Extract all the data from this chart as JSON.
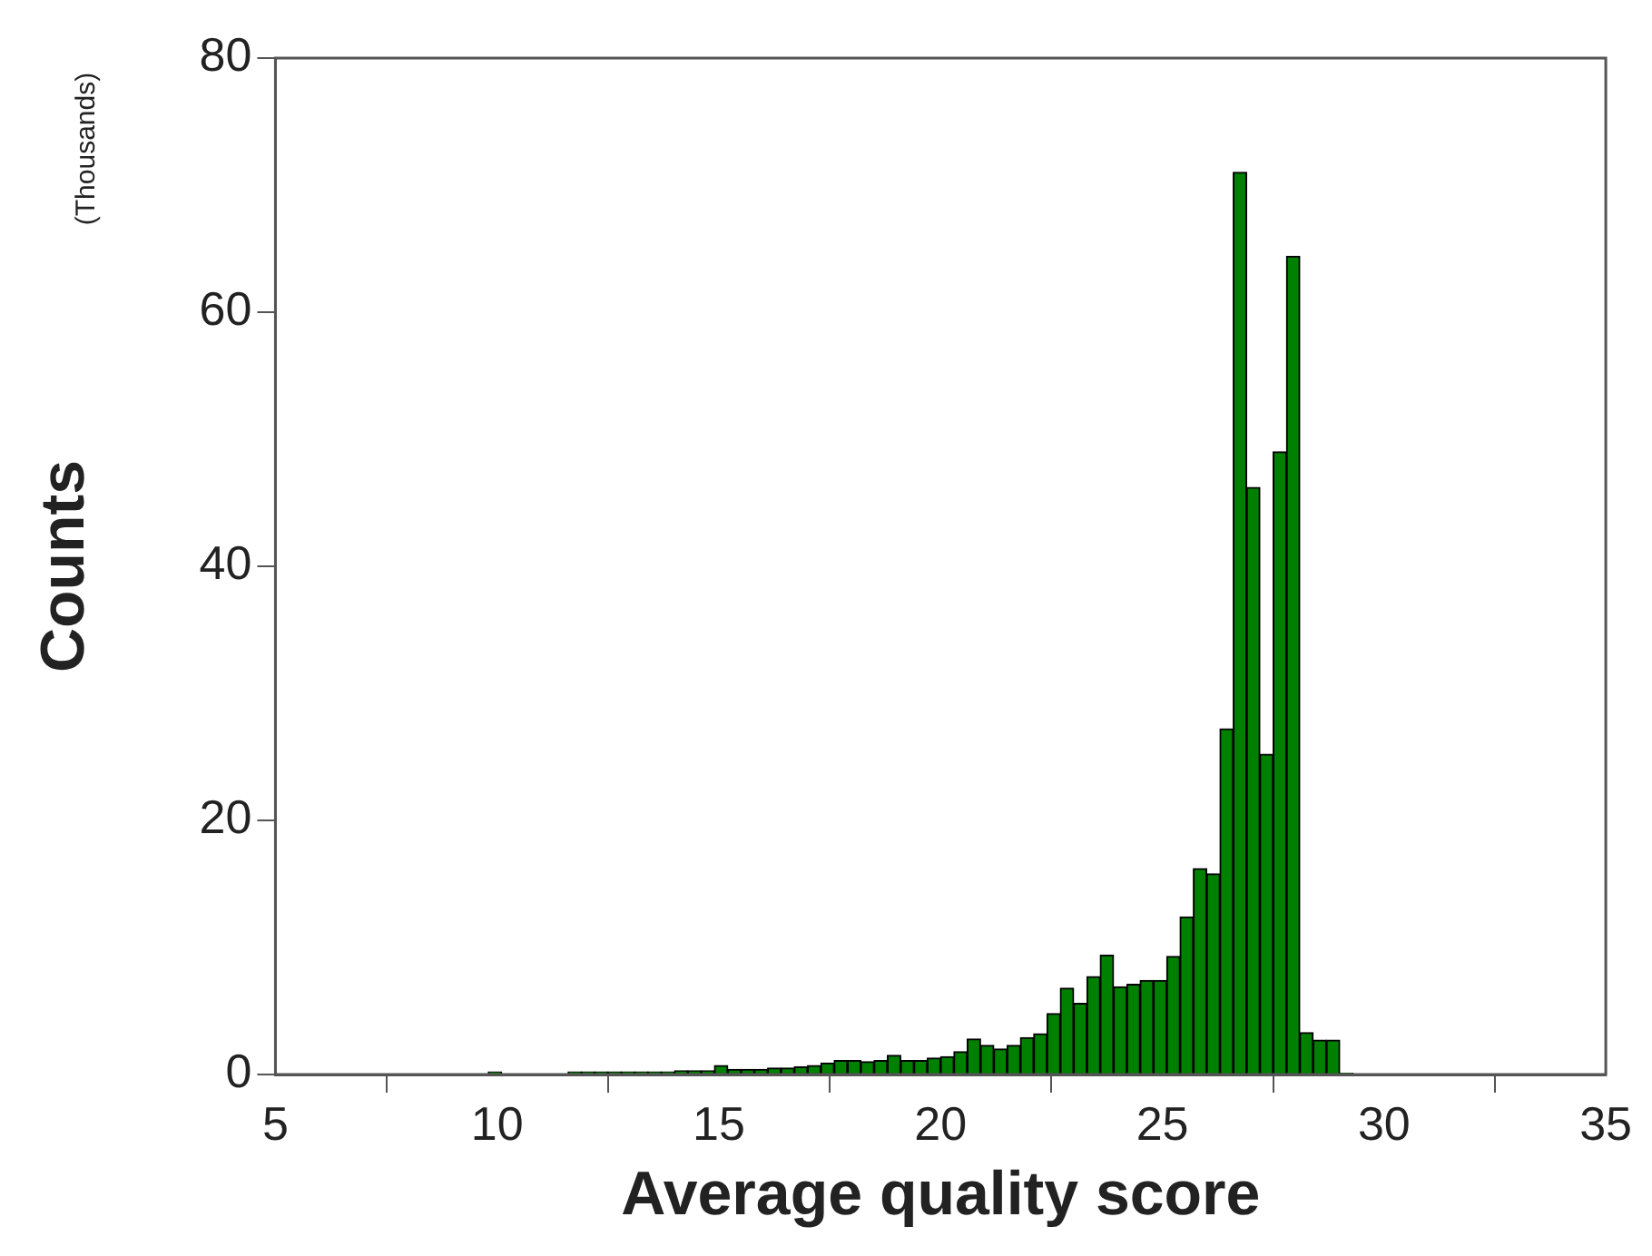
{
  "chart_data": {
    "type": "histogram",
    "xlabel": "Average quality score",
    "ylabel": "Counts",
    "annotations": [
      "(Thousands)"
    ],
    "bins": [
      9.8,
      10.1,
      10.4,
      10.7,
      11.0,
      11.3,
      11.6,
      11.9,
      12.2,
      12.5,
      12.8,
      13.1,
      13.4,
      13.7,
      14.0,
      14.3,
      14.6,
      14.9,
      15.2,
      15.5,
      15.8,
      16.1,
      16.4,
      16.7,
      17.0,
      17.3,
      17.6,
      17.9,
      18.2,
      18.5,
      18.8,
      19.1,
      19.4,
      19.7,
      20.0,
      20.3,
      20.6,
      20.9,
      21.2,
      21.5,
      21.8,
      22.1,
      22.4,
      22.7,
      23.0,
      23.3,
      23.6,
      23.9,
      24.2,
      24.5,
      24.8,
      25.1,
      25.4,
      25.7,
      26.0,
      26.3,
      26.6,
      26.9,
      27.2,
      27.5,
      27.8,
      28.1,
      28.4,
      28.7,
      29.0,
      29.3
    ],
    "values": [
      0.2,
      0,
      0,
      0,
      0,
      0,
      0.2,
      0.2,
      0.2,
      0.2,
      0.2,
      0.2,
      0.2,
      0.2,
      0.3,
      0.3,
      0.3,
      0.7,
      0.4,
      0.4,
      0.4,
      0.5,
      0.5,
      0.6,
      0.7,
      0.9,
      1.1,
      1.1,
      1.0,
      1.1,
      1.5,
      1.1,
      1.1,
      1.3,
      1.4,
      1.8,
      2.8,
      2.3,
      2.0,
      2.3,
      2.9,
      3.2,
      4.8,
      6.8,
      5.6,
      7.7,
      9.4,
      6.9,
      7.1,
      7.4,
      7.4,
      9.3,
      12.4,
      16.2,
      15.8,
      27.2,
      71.0,
      46.2,
      25.2,
      49.0,
      64.4,
      3.3,
      2.7,
      2.7,
      0.1
    ],
    "color": "#008000",
    "xlim": [
      5,
      35
    ],
    "xticks": [
      5,
      10,
      15,
      20,
      25,
      30,
      35
    ],
    "ylim": [
      0,
      80
    ],
    "yticks": [
      0,
      20,
      40,
      60,
      80
    ],
    "grid": false
  }
}
